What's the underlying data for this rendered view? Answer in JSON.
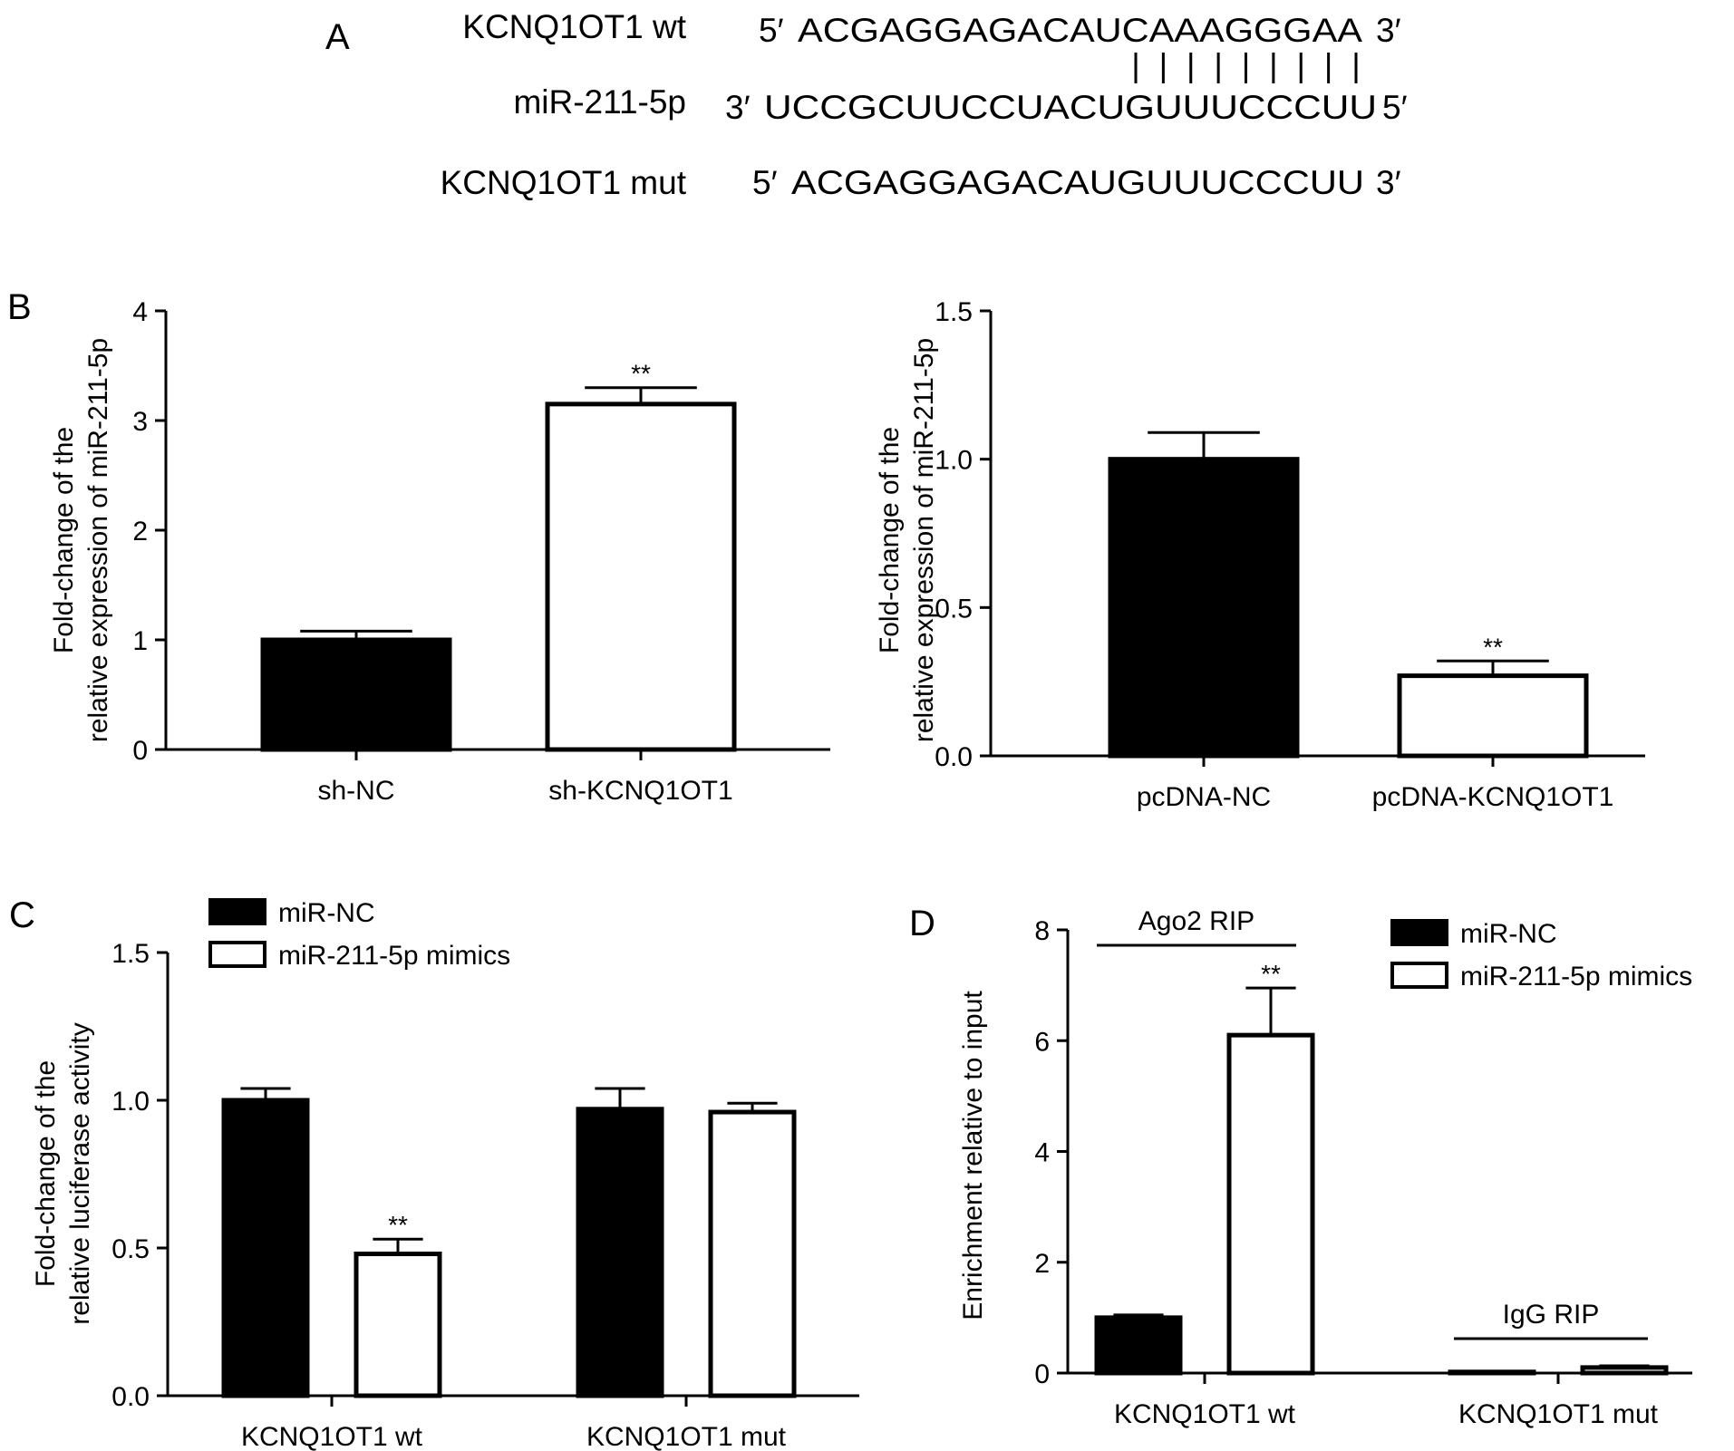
{
  "panel_a": {
    "label": "A",
    "wt_name": "KCNQ1OT1 wt",
    "wt_5prime": "5′",
    "wt_seq": "ACGAGGAGACAUCAAAGGGAA",
    "wt_3prime": "3′",
    "mir_name": "miR-211-5p",
    "mir_3prime": "3′",
    "mir_seq": "UCCGCUUCCUACUGUUUCCCUU",
    "mir_5prime": "5′",
    "mut_name": "KCNQ1OT1 mut",
    "mut_5prime": "5′",
    "mut_seq": "ACGAGGAGACAUGUUUCCCUU",
    "mut_3prime": "3′",
    "pairing_lines": 9
  },
  "colors": {
    "filled": "#000000",
    "open": "#ffffff",
    "stroke": "#000000"
  },
  "chart_data": [
    {
      "id": "B1",
      "panel_label": "B",
      "type": "bar",
      "ylabel": [
        "Fold-change of the",
        "relative expression of miR-211-5p"
      ],
      "ylim": [
        0,
        4
      ],
      "yticks": [
        "0",
        "1",
        "2",
        "3",
        "4"
      ],
      "categories": [
        "sh-NC",
        "sh-KCNQ1OT1"
      ],
      "values": [
        1.0,
        3.15
      ],
      "errors": [
        0.08,
        0.15
      ],
      "fills": [
        "filled",
        "open"
      ],
      "significance": [
        "",
        "**"
      ]
    },
    {
      "id": "B2",
      "type": "bar",
      "ylabel": [
        "Fold-change of the",
        "relative expression of miR-211-5p"
      ],
      "ylim": [
        0,
        1.5
      ],
      "yticks": [
        "0.0",
        "0.5",
        "1.0",
        "1.5"
      ],
      "categories": [
        "pcDNA-NC",
        "pcDNA-KCNQ1OT1"
      ],
      "values": [
        1.0,
        0.27
      ],
      "errors": [
        0.09,
        0.05
      ],
      "fills": [
        "filled",
        "open"
      ],
      "significance": [
        "",
        "**"
      ]
    },
    {
      "id": "C",
      "panel_label": "C",
      "type": "bar",
      "ylabel": [
        "Fold-change of the",
        "relative luciferase activity"
      ],
      "ylim": [
        0,
        1.5
      ],
      "yticks": [
        "0.0",
        "0.5",
        "1.0",
        "1.5"
      ],
      "categories": [
        "KCNQ1OT1 wt",
        "KCNQ1OT1 mut"
      ],
      "series": [
        {
          "name": "miR-NC",
          "fill": "filled",
          "values": [
            1.0,
            0.97
          ],
          "errors": [
            0.04,
            0.07
          ],
          "significance": [
            "",
            ""
          ]
        },
        {
          "name": "miR-211-5p mimics",
          "fill": "open",
          "values": [
            0.48,
            0.96
          ],
          "errors": [
            0.05,
            0.03
          ],
          "significance": [
            "**",
            ""
          ]
        }
      ],
      "legend": "top-left"
    },
    {
      "id": "D",
      "panel_label": "D",
      "type": "bar",
      "ylabel": [
        "Enrichment relative to input"
      ],
      "ylim": [
        0,
        8
      ],
      "yticks": [
        "0",
        "2",
        "4",
        "6",
        "8"
      ],
      "categories": [
        "KCNQ1OT1 wt",
        "KCNQ1OT1 mut"
      ],
      "series": [
        {
          "name": "miR-NC",
          "fill": "filled",
          "values": [
            1.0,
            0.02
          ],
          "errors": [
            0.05,
            0.01
          ],
          "significance": [
            "",
            ""
          ]
        },
        {
          "name": "miR-211-5p mimics",
          "fill": "open",
          "values": [
            6.1,
            0.1
          ],
          "errors": [
            0.85,
            0.03
          ],
          "significance": [
            "**",
            ""
          ]
        }
      ],
      "group_annotations": [
        "Ago2 RIP",
        "IgG RIP"
      ],
      "legend": "top-right"
    }
  ]
}
